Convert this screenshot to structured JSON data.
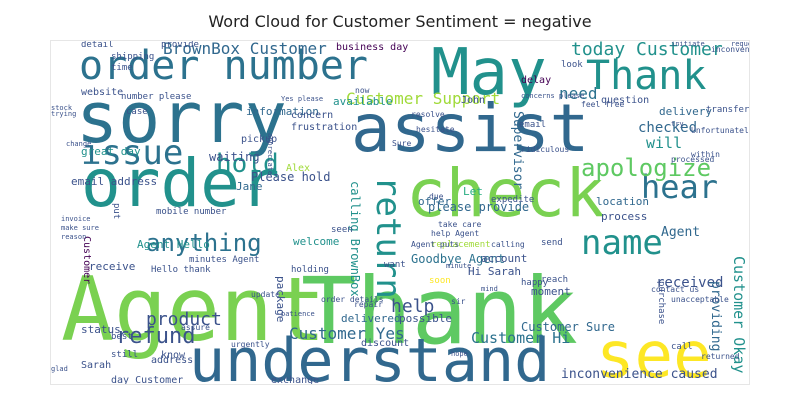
{
  "title": "Word Cloud for Customer Sentiment = negative",
  "palette": [
    "#440154",
    "#3b528b",
    "#21918c",
    "#27ad81",
    "#5ec962",
    "#a0da39",
    "#fde725",
    "#2c728e"
  ],
  "words": [
    {
      "text": "Agent",
      "weight": 100,
      "color": "#7ad151"
    },
    {
      "text": "Thank",
      "weight": 96,
      "color": "#5ec962"
    },
    {
      "text": "sorry",
      "weight": 88,
      "color": "#2c728e"
    },
    {
      "text": "assist",
      "weight": 86,
      "color": "#31688e"
    },
    {
      "text": "check",
      "weight": 84,
      "color": "#7ad151"
    },
    {
      "text": "order",
      "weight": 80,
      "color": "#21918c"
    },
    {
      "text": "May",
      "weight": 78,
      "color": "#21918c"
    },
    {
      "text": "understand",
      "weight": 74,
      "color": "#31688e"
    },
    {
      "text": "see",
      "weight": 72,
      "color": "#fde725"
    },
    {
      "text": "order number",
      "weight": 52,
      "color": "#2c728e"
    },
    {
      "text": "Thank",
      "weight": 50,
      "color": "#21918c"
    },
    {
      "text": "issue",
      "weight": 44,
      "color": "#2c728e"
    },
    {
      "text": "return",
      "weight": 44,
      "color": "#21918c"
    },
    {
      "text": "name",
      "weight": 42,
      "color": "#21918c"
    },
    {
      "text": "hear",
      "weight": 40,
      "color": "#2c728e"
    },
    {
      "text": "apologize",
      "weight": 32,
      "color": "#5ec962"
    },
    {
      "text": "hold",
      "weight": 32,
      "color": "#21918c"
    },
    {
      "text": "anything",
      "weight": 30,
      "color": "#2c728e"
    },
    {
      "text": "refund",
      "weight": 26,
      "color": "#3b528b"
    },
    {
      "text": "today Customer",
      "weight": 22,
      "color": "#21918c"
    },
    {
      "text": "BrownBox Customer",
      "weight": 21,
      "color": "#31688e"
    },
    {
      "text": "product",
      "weight": 20,
      "color": "#3b528b"
    },
    {
      "text": "Customer Support",
      "weight": 18,
      "color": "#a0da39"
    },
    {
      "text": "Customer Yes",
      "weight": 18,
      "color": "#31688e"
    },
    {
      "text": "Customer Hi",
      "weight": 17,
      "color": "#2c728e"
    },
    {
      "text": "Customer Okay",
      "weight": 17,
      "color": "#21918c"
    },
    {
      "text": "inconvenience caused",
      "weight": 15,
      "color": "#3b528b"
    },
    {
      "text": "Agent",
      "weight": 15,
      "color": "#31688e"
    },
    {
      "text": "need",
      "weight": 15,
      "color": "#2c728e"
    },
    {
      "text": "will",
      "weight": 14,
      "color": "#21918c"
    },
    {
      "text": "help",
      "weight": 15,
      "color": "#3b528b"
    },
    {
      "text": "checked",
      "weight": 13,
      "color": "#31688e"
    },
    {
      "text": "received",
      "weight": 13,
      "color": "#3b528b"
    },
    {
      "text": "providing",
      "weight": 12,
      "color": "#31688e"
    },
    {
      "text": "Supervisor",
      "weight": 12,
      "color": "#31688e"
    },
    {
      "text": "Goodbye Agent",
      "weight": 11,
      "color": "#2c728e"
    },
    {
      "text": "please provide",
      "weight": 11,
      "color": "#31688e"
    },
    {
      "text": "Please hold",
      "weight": 11,
      "color": "#3b528b"
    },
    {
      "text": "waiting",
      "weight": 11,
      "color": "#3b528b"
    },
    {
      "text": "Customer Sure",
      "weight": 11,
      "color": "#31688e"
    },
    {
      "text": "calling BrownBox",
      "weight": 10,
      "color": "#21918c"
    },
    {
      "text": "delivery",
      "weight": 10,
      "color": "#31688e"
    },
    {
      "text": "information",
      "weight": 10,
      "color": "#31688e"
    },
    {
      "text": "account",
      "weight": 10,
      "color": "#3b528b"
    },
    {
      "text": "available",
      "weight": 9,
      "color": "#21918c"
    },
    {
      "text": "location",
      "weight": 9,
      "color": "#31688e"
    },
    {
      "text": "process",
      "weight": 9,
      "color": "#3b528b"
    },
    {
      "text": "delivered",
      "weight": 9,
      "color": "#31688e"
    },
    {
      "text": "package",
      "weight": 9,
      "color": "#3b528b"
    },
    {
      "text": "possible",
      "weight": 9,
      "color": "#3b528b"
    },
    {
      "text": "moment",
      "weight": 9,
      "color": "#3b528b"
    },
    {
      "text": "Hi Sarah",
      "weight": 8,
      "color": "#3b528b"
    },
    {
      "text": "Agent Hello",
      "weight": 8,
      "color": "#21918c"
    },
    {
      "text": "receive",
      "weight": 8,
      "color": "#3b528b"
    },
    {
      "text": "great day",
      "weight": 8,
      "color": "#21918c"
    },
    {
      "text": "Jane",
      "weight": 8,
      "color": "#31688e"
    },
    {
      "text": "Let",
      "weight": 8,
      "color": "#27ad81"
    },
    {
      "text": "offer",
      "weight": 8,
      "color": "#31688e"
    },
    {
      "text": "email address",
      "weight": 8,
      "color": "#3b528b"
    },
    {
      "text": "welcome",
      "weight": 8,
      "color": "#21918c"
    },
    {
      "text": "Customer",
      "weight": 8,
      "color": "#440154"
    },
    {
      "text": "status",
      "weight": 8,
      "color": "#3b528b"
    },
    {
      "text": "business day",
      "weight": 7,
      "color": "#440154"
    },
    {
      "text": "delay",
      "weight": 7,
      "color": "#440154"
    },
    {
      "text": "question",
      "weight": 7,
      "color": "#3b528b"
    },
    {
      "text": "website",
      "weight": 7,
      "color": "#3b528b"
    },
    {
      "text": "concern",
      "weight": 7,
      "color": "#3b528b"
    },
    {
      "text": "frustration",
      "weight": 7,
      "color": "#3b528b"
    },
    {
      "text": "pickup",
      "weight": 7,
      "color": "#3b528b"
    },
    {
      "text": "Alex",
      "weight": 7,
      "color": "#a0da39"
    },
    {
      "text": "John",
      "weight": 7,
      "color": "#3b528b"
    },
    {
      "text": "exchange",
      "weight": 7,
      "color": "#3b528b"
    },
    {
      "text": "discount",
      "weight": 7,
      "color": "#3b528b"
    },
    {
      "text": "address",
      "weight": 7,
      "color": "#3b528b"
    },
    {
      "text": "know",
      "weight": 7,
      "color": "#3b528b"
    },
    {
      "text": "Sarah",
      "weight": 7,
      "color": "#3b528b"
    },
    {
      "text": "day Customer",
      "weight": 7,
      "color": "#3b528b"
    },
    {
      "text": "contacting BrownBox",
      "weight": 6,
      "color": "#3b528b"
    },
    {
      "text": "Hello thank",
      "weight": 6,
      "color": "#3b528b"
    },
    {
      "text": "minutes Agent",
      "weight": 6,
      "color": "#3b528b"
    },
    {
      "text": "mobile number",
      "weight": 6,
      "color": "#3b528b"
    },
    {
      "text": "expedite",
      "weight": 6,
      "color": "#3b528b"
    },
    {
      "text": "email",
      "weight": 6,
      "color": "#3b528b"
    },
    {
      "text": "replacement",
      "weight": 6,
      "color": "#a0da39"
    },
    {
      "text": "send",
      "weight": 6,
      "color": "#3b528b"
    },
    {
      "text": "reach",
      "weight": 6,
      "color": "#3b528b"
    },
    {
      "text": "purchase",
      "weight": 6,
      "color": "#3b528b"
    },
    {
      "text": "call",
      "weight": 6,
      "color": "#3b528b"
    },
    {
      "text": "want",
      "weight": 6,
      "color": "#3b528b"
    },
    {
      "text": "soon",
      "weight": 6,
      "color": "#fde725"
    },
    {
      "text": "happy",
      "weight": 6,
      "color": "#3b528b"
    },
    {
      "text": "look",
      "weight": 6,
      "color": "#3b528b"
    },
    {
      "text": "detail",
      "weight": 5,
      "color": "#3b528b"
    },
    {
      "text": "provide",
      "weight": 5,
      "color": "#3b528b"
    },
    {
      "text": "shipping",
      "weight": 5,
      "color": "#3b528b"
    },
    {
      "text": "time",
      "weight": 5,
      "color": "#3b528b"
    },
    {
      "text": "number please",
      "weight": 5,
      "color": "#3b528b"
    },
    {
      "text": "case",
      "weight": 5,
      "color": "#3b528b"
    },
    {
      "text": "seen",
      "weight": 5,
      "color": "#3b528b"
    },
    {
      "text": "holding",
      "weight": 5,
      "color": "#3b528b"
    },
    {
      "text": "best",
      "weight": 5,
      "color": "#3b528b"
    },
    {
      "text": "still",
      "weight": 5,
      "color": "#3b528b"
    },
    {
      "text": "put",
      "weight": 5,
      "color": "#3b528b"
    },
    {
      "text": "transfer",
      "weight": 5,
      "color": "#3b528b"
    },
    {
      "text": "within",
      "weight": 4,
      "color": "#3b528b"
    },
    {
      "text": "processed",
      "weight": 4,
      "color": "#3b528b"
    },
    {
      "text": "Unfortunately",
      "weight": 4,
      "color": "#3b528b"
    },
    {
      "text": "inconvenience",
      "weight": 4,
      "color": "#3b528b"
    },
    {
      "text": "contact us",
      "weight": 4,
      "color": "#3b528b"
    },
    {
      "text": "returned",
      "weight": 4,
      "color": "#3b528b"
    },
    {
      "text": "sir",
      "weight": 4,
      "color": "#3b528b"
    },
    {
      "text": "resolve",
      "weight": 5,
      "color": "#3b528b"
    },
    {
      "text": "hesitate",
      "weight": 5,
      "color": "#3b528b"
    },
    {
      "text": "Agent puts",
      "weight": 5,
      "color": "#3b528b"
    },
    {
      "text": "help Agent",
      "weight": 4,
      "color": "#3b528b"
    },
    {
      "text": "take care",
      "weight": 4,
      "color": "#3b528b"
    },
    {
      "text": "calling",
      "weight": 4,
      "color": "#3b528b"
    },
    {
      "text": "ridiculous",
      "weight": 4,
      "color": "#3b528b"
    },
    {
      "text": "feel free",
      "weight": 4,
      "color": "#3b528b"
    },
    {
      "text": "assure",
      "weight": 4,
      "color": "#3b528b"
    },
    {
      "text": "urgently",
      "weight": 4,
      "color": "#3b528b"
    },
    {
      "text": "unacceptable",
      "weight": 4,
      "color": "#3b528b"
    },
    {
      "text": "update",
      "weight": 4,
      "color": "#3b528b"
    },
    {
      "text": "repair",
      "weight": 4,
      "color": "#3b528b"
    },
    {
      "text": "order details",
      "weight": 4,
      "color": "#3b528b"
    },
    {
      "text": "trying",
      "weight": 4,
      "color": "#3b528b"
    },
    {
      "text": "invoice",
      "weight": 4,
      "color": "#3b528b"
    },
    {
      "text": "make sure",
      "weight": 4,
      "color": "#3b528b"
    },
    {
      "text": "reason",
      "weight": 4,
      "color": "#3b528b"
    },
    {
      "text": "request",
      "weight": 4,
      "color": "#3b528b"
    },
    {
      "text": "initiate",
      "weight": 4,
      "color": "#3b528b"
    },
    {
      "text": "minute",
      "weight": 4,
      "color": "#3b528b"
    },
    {
      "text": "patience",
      "weight": 4,
      "color": "#3b528b"
    },
    {
      "text": "mind",
      "weight": 4,
      "color": "#3b528b"
    },
    {
      "text": "hope",
      "weight": 4,
      "color": "#3b528b"
    },
    {
      "text": "glad",
      "weight": 4,
      "color": "#3b528b"
    },
    {
      "text": "try",
      "weight": 4,
      "color": "#3b528b"
    },
    {
      "text": "concerns please",
      "weight": 4,
      "color": "#3b528b"
    },
    {
      "text": "Yes please",
      "weight": 4,
      "color": "#3b528b"
    },
    {
      "text": "appreciate",
      "weight": 4,
      "color": "#3b528b"
    },
    {
      "text": "change",
      "weight": 4,
      "color": "#3b528b"
    },
    {
      "text": "stock",
      "weight": 4,
      "color": "#3b528b"
    },
    {
      "text": "now",
      "weight": 4,
      "color": "#3b528b"
    },
    {
      "text": "Sure",
      "weight": 4,
      "color": "#3b528b"
    },
    {
      "text": "due",
      "weight": 4,
      "color": "#3b528b"
    }
  ]
}
